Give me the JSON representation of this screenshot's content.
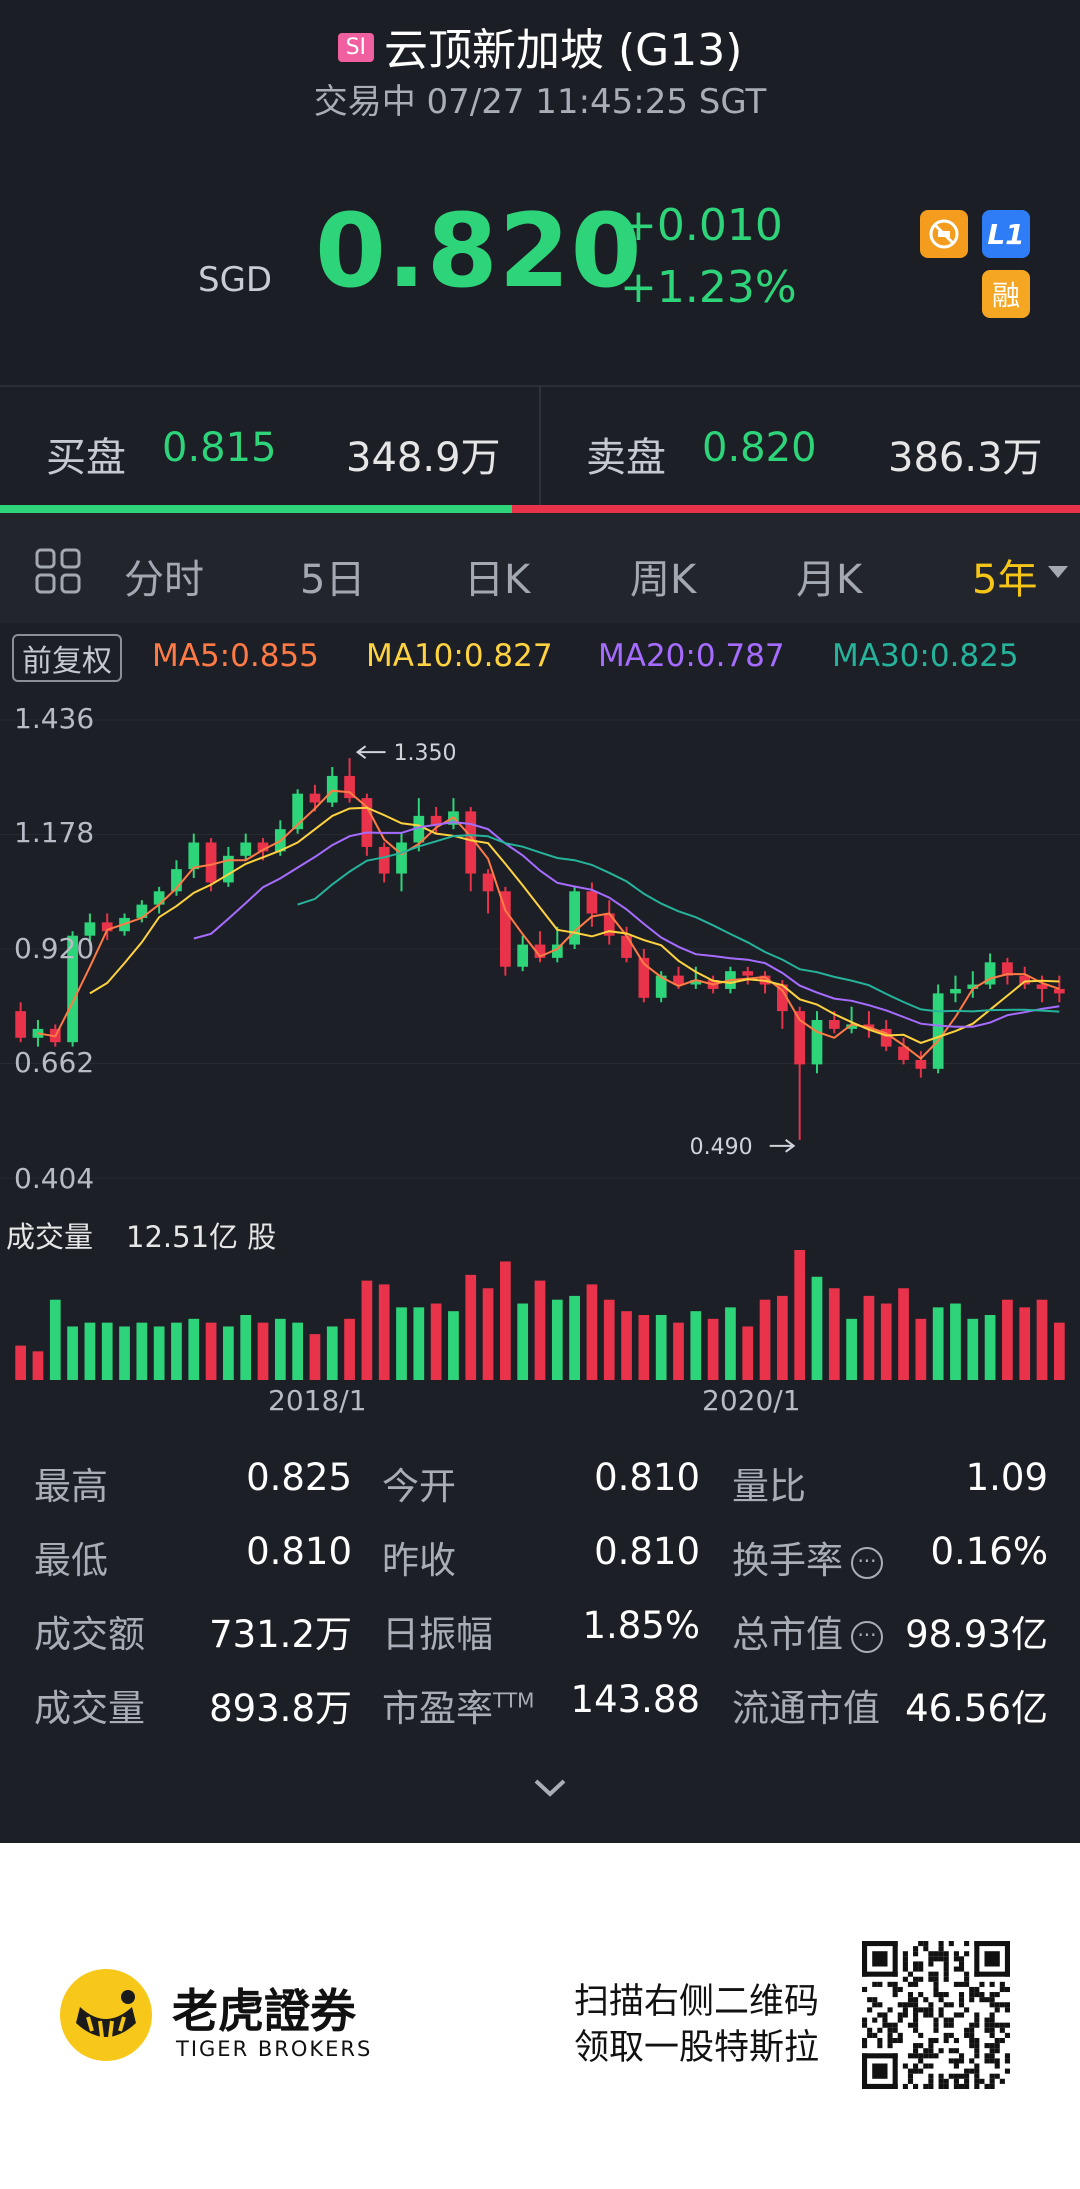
{
  "header": {
    "market_badge": "SI",
    "title": "云顶新加坡 (G13)",
    "status_line": "交易中 07/27 11:45:25 SGT"
  },
  "quote": {
    "currency": "SGD",
    "price": "0.820",
    "change": "+0.010",
    "change_pct": "+1.23%",
    "badges": [
      "L1",
      "融"
    ]
  },
  "orderbook": {
    "bid_label": "买盘",
    "bid_price": "0.815",
    "bid_vol": "348.9万",
    "ask_label": "卖盘",
    "ask_price": "0.820",
    "ask_vol": "386.3万"
  },
  "tabs": {
    "items": [
      "分时",
      "5日",
      "日K",
      "周K",
      "月K",
      "5年"
    ],
    "active": "5年"
  },
  "ma_legend": {
    "adjust": "前复权",
    "ma5": "MA5:0.855",
    "ma10": "MA10:0.827",
    "ma20": "MA20:0.787",
    "ma30": "MA30:0.825"
  },
  "colors": {
    "up": "#e8334a",
    "down": "#2ed47a",
    "ma5": "#ff7a45",
    "ma10": "#ffd23f",
    "ma20": "#a66cff",
    "ma30": "#26b39b",
    "accent": "#f5c518"
  },
  "chart_data": {
    "type": "candlestick",
    "y_ticks": [
      "1.436",
      "1.178",
      "0.920",
      "0.662",
      "0.404"
    ],
    "ylim": [
      0.404,
      1.436
    ],
    "annotations": {
      "high": "1.350",
      "low": "0.490"
    },
    "x_ticks": [
      "2018/1",
      "2020/1"
    ],
    "volume_label": "成交量",
    "volume_value": "12.51亿 股",
    "candles": [
      [
        0.78,
        0.72,
        0.8,
        0.71
      ],
      [
        0.72,
        0.74,
        0.76,
        0.7
      ],
      [
        0.74,
        0.71,
        0.75,
        0.7
      ],
      [
        0.71,
        0.95,
        0.96,
        0.7
      ],
      [
        0.95,
        0.98,
        1.0,
        0.93
      ],
      [
        0.98,
        0.96,
        1.0,
        0.94
      ],
      [
        0.96,
        0.99,
        1.0,
        0.95
      ],
      [
        0.99,
        1.02,
        1.03,
        0.98
      ],
      [
        1.02,
        1.05,
        1.06,
        1.0
      ],
      [
        1.05,
        1.1,
        1.12,
        1.04
      ],
      [
        1.1,
        1.16,
        1.18,
        1.08
      ],
      [
        1.16,
        1.07,
        1.17,
        1.05
      ],
      [
        1.07,
        1.13,
        1.15,
        1.06
      ],
      [
        1.13,
        1.16,
        1.18,
        1.12
      ],
      [
        1.16,
        1.14,
        1.17,
        1.12
      ],
      [
        1.14,
        1.19,
        1.21,
        1.13
      ],
      [
        1.19,
        1.27,
        1.28,
        1.18
      ],
      [
        1.27,
        1.25,
        1.29,
        1.23
      ],
      [
        1.25,
        1.31,
        1.33,
        1.24
      ],
      [
        1.31,
        1.26,
        1.35,
        1.25
      ],
      [
        1.26,
        1.15,
        1.27,
        1.13
      ],
      [
        1.15,
        1.09,
        1.16,
        1.07
      ],
      [
        1.09,
        1.16,
        1.18,
        1.05
      ],
      [
        1.16,
        1.22,
        1.26,
        1.14
      ],
      [
        1.22,
        1.2,
        1.24,
        1.18
      ],
      [
        1.2,
        1.23,
        1.26,
        1.19
      ],
      [
        1.23,
        1.09,
        1.24,
        1.05
      ],
      [
        1.09,
        1.05,
        1.1,
        1.0
      ],
      [
        1.05,
        0.88,
        1.06,
        0.86
      ],
      [
        0.88,
        0.93,
        0.95,
        0.87
      ],
      [
        0.93,
        0.9,
        0.96,
        0.89
      ],
      [
        0.9,
        0.93,
        0.97,
        0.89
      ],
      [
        0.93,
        1.05,
        1.06,
        0.92
      ],
      [
        1.05,
        1.0,
        1.07,
        0.97
      ],
      [
        1.0,
        0.95,
        1.03,
        0.93
      ],
      [
        0.95,
        0.9,
        0.97,
        0.89
      ],
      [
        0.9,
        0.81,
        0.92,
        0.8
      ],
      [
        0.81,
        0.86,
        0.87,
        0.8
      ],
      [
        0.86,
        0.84,
        0.88,
        0.83
      ],
      [
        0.84,
        0.85,
        0.88,
        0.83
      ],
      [
        0.85,
        0.83,
        0.86,
        0.82
      ],
      [
        0.83,
        0.87,
        0.88,
        0.82
      ],
      [
        0.87,
        0.86,
        0.88,
        0.84
      ],
      [
        0.86,
        0.84,
        0.87,
        0.82
      ],
      [
        0.84,
        0.78,
        0.85,
        0.74
      ],
      [
        0.78,
        0.66,
        0.79,
        0.49
      ],
      [
        0.66,
        0.76,
        0.78,
        0.64
      ],
      [
        0.76,
        0.74,
        0.78,
        0.73
      ],
      [
        0.74,
        0.75,
        0.79,
        0.73
      ],
      [
        0.75,
        0.74,
        0.78,
        0.72
      ],
      [
        0.74,
        0.7,
        0.76,
        0.69
      ],
      [
        0.7,
        0.67,
        0.72,
        0.66
      ],
      [
        0.67,
        0.65,
        0.69,
        0.63
      ],
      [
        0.65,
        0.82,
        0.84,
        0.64
      ],
      [
        0.82,
        0.83,
        0.86,
        0.8
      ],
      [
        0.83,
        0.84,
        0.87,
        0.81
      ],
      [
        0.84,
        0.89,
        0.91,
        0.83
      ],
      [
        0.89,
        0.86,
        0.9,
        0.84
      ],
      [
        0.86,
        0.84,
        0.88,
        0.83
      ],
      [
        0.84,
        0.83,
        0.86,
        0.8
      ],
      [
        0.83,
        0.82,
        0.86,
        0.8
      ]
    ],
    "volumes": [
      18,
      15,
      42,
      28,
      30,
      30,
      28,
      30,
      28,
      30,
      32,
      30,
      28,
      34,
      30,
      32,
      30,
      24,
      28,
      32,
      52,
      50,
      38,
      38,
      40,
      36,
      55,
      48,
      62,
      40,
      52,
      42,
      44,
      50,
      42,
      36,
      34,
      34,
      30,
      36,
      32,
      38,
      28,
      42,
      44,
      68,
      54,
      48,
      32,
      44,
      40,
      48,
      32,
      38,
      40,
      32,
      34,
      42,
      38,
      42,
      30
    ],
    "volume_down": [
      false,
      false,
      true,
      true,
      true,
      true,
      true,
      true,
      true,
      true,
      true,
      false,
      true,
      true,
      false,
      true,
      true,
      false,
      true,
      false,
      false,
      false,
      true,
      true,
      false,
      true,
      false,
      false,
      false,
      true,
      false,
      true,
      true,
      false,
      false,
      false,
      false,
      true,
      false,
      true,
      false,
      true,
      false,
      false,
      false,
      false,
      true,
      false,
      true,
      false,
      false,
      false,
      false,
      true,
      true,
      true,
      true,
      false,
      false,
      false,
      false
    ]
  },
  "stats": [
    [
      "最高",
      "0.825",
      "今开",
      "0.810",
      "量比",
      "1.09"
    ],
    [
      "最低",
      "0.810",
      "昨收",
      "0.810",
      "换手率",
      "0.16%"
    ],
    [
      "成交额",
      "731.2万",
      "日振幅",
      "1.85%",
      "总市值",
      "98.93亿"
    ],
    [
      "成交量",
      "893.8万",
      "市盈率",
      "143.88",
      "流通市值",
      "46.56亿"
    ]
  ],
  "pe_suffix": "TTM",
  "footer": {
    "brand_cn": "老虎證券",
    "brand_en": "TIGER BROKERS",
    "promo_line1": "扫描右侧二维码",
    "promo_line2": "领取一股特斯拉"
  }
}
